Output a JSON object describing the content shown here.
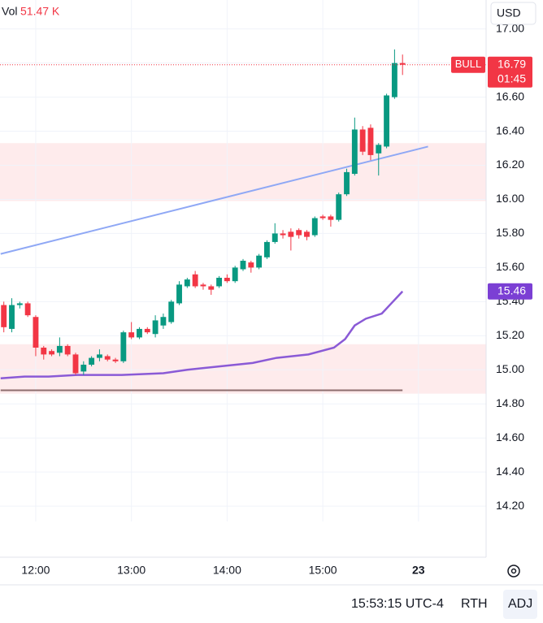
{
  "header": {
    "vol_label": "Vol",
    "vol_value": "51.47 K",
    "currency": "USD"
  },
  "footer": {
    "clock": "15:53:15 UTC-4",
    "session": "RTH",
    "adjust": "ADJ"
  },
  "badges": {
    "signal": "BULL",
    "last_price": "16.79",
    "countdown": "01:45",
    "vwap": "15.46"
  },
  "chart_data": {
    "type": "candlestick",
    "xlim": [
      697.6,
      1002.4
    ],
    "ylim": [
      14.11,
      17.17
    ],
    "xticks": [
      {
        "value": 720,
        "label": "12:00"
      },
      {
        "value": 780,
        "label": "13:00"
      },
      {
        "value": 840,
        "label": "14:00"
      },
      {
        "value": 900,
        "label": "15:00"
      },
      {
        "value": 960,
        "label": "23"
      }
    ],
    "yticks": [
      {
        "value": 14.2,
        "label": "14.20"
      },
      {
        "value": 14.4,
        "label": "14.40"
      },
      {
        "value": 14.6,
        "label": "14.60"
      },
      {
        "value": 14.8,
        "label": "14.80"
      },
      {
        "value": 15.0,
        "label": "15.00"
      },
      {
        "value": 15.2,
        "label": "15.20"
      },
      {
        "value": 15.4,
        "label": "15.40"
      },
      {
        "value": 15.6,
        "label": "15.60"
      },
      {
        "value": 15.8,
        "label": "15.80"
      },
      {
        "value": 16.0,
        "label": "16.00"
      },
      {
        "value": 16.2,
        "label": "16.20"
      },
      {
        "value": 16.4,
        "label": "16.40"
      },
      {
        "value": 16.6,
        "label": "16.60"
      },
      {
        "value": 16.8,
        "label": "16.80"
      },
      {
        "value": 17.0,
        "label": "17.00"
      }
    ],
    "grid": true,
    "up_color": "#089981",
    "down_color": "#f23645",
    "x": [
      700,
      705,
      710,
      715,
      720,
      725,
      730,
      735,
      740,
      745,
      750,
      755,
      760,
      765,
      770,
      775,
      780,
      785,
      790,
      795,
      800,
      805,
      810,
      815,
      820,
      825,
      830,
      835,
      840,
      845,
      850,
      855,
      860,
      865,
      870,
      875,
      880,
      885,
      890,
      895,
      900,
      905,
      910,
      915,
      920,
      925,
      930,
      935,
      940,
      945,
      950
    ],
    "open": [
      15.38,
      15.24,
      15.38,
      15.39,
      15.31,
      15.13,
      15.11,
      15.1,
      15.14,
      15.09,
      14.99,
      15.03,
      15.07,
      15.08,
      15.06,
      15.05,
      15.22,
      15.19,
      15.24,
      15.21,
      15.26,
      15.28,
      15.39,
      15.49,
      15.56,
      15.5,
      15.49,
      15.49,
      15.54,
      15.52,
      15.59,
      15.63,
      15.6,
      15.66,
      15.75,
      15.8,
      15.81,
      15.82,
      15.81,
      15.79,
      15.9,
      15.9,
      15.88,
      16.03,
      16.15,
      16.41,
      16.42,
      16.27,
      16.31,
      16.6,
      16.8
    ],
    "high": [
      15.4,
      15.42,
      15.4,
      15.4,
      15.32,
      15.14,
      15.12,
      15.19,
      15.15,
      15.1,
      15.05,
      15.08,
      15.12,
      15.09,
      15.07,
      15.23,
      15.28,
      15.25,
      15.25,
      15.32,
      15.33,
      15.41,
      15.52,
      15.54,
      15.58,
      15.51,
      15.5,
      15.55,
      15.56,
      15.61,
      15.65,
      15.64,
      15.68,
      15.76,
      15.86,
      15.82,
      15.83,
      15.83,
      15.82,
      15.9,
      15.91,
      15.91,
      16.04,
      16.18,
      16.48,
      16.43,
      16.44,
      16.33,
      16.62,
      16.88,
      16.85
    ],
    "low": [
      15.22,
      15.22,
      15.36,
      15.31,
      15.08,
      15.06,
      15.08,
      15.08,
      15.08,
      14.97,
      14.97,
      15.02,
      15.05,
      15.05,
      15.04,
      15.04,
      15.18,
      15.18,
      15.21,
      15.19,
      15.24,
      15.27,
      15.38,
      15.48,
      15.48,
      15.47,
      15.44,
      15.48,
      15.51,
      15.51,
      15.58,
      15.57,
      15.59,
      15.65,
      15.74,
      15.77,
      15.7,
      15.77,
      15.76,
      15.78,
      15.88,
      15.84,
      15.87,
      16.02,
      16.14,
      16.26,
      16.23,
      16.14,
      16.3,
      16.59,
      16.73
    ],
    "close": [
      15.25,
      15.38,
      15.39,
      15.32,
      15.13,
      15.09,
      15.09,
      15.14,
      15.09,
      14.98,
      15.03,
      15.07,
      15.09,
      15.06,
      15.05,
      15.22,
      15.19,
      15.24,
      15.22,
      15.29,
      15.31,
      15.4,
      15.5,
      15.53,
      15.49,
      15.49,
      15.47,
      15.54,
      15.52,
      15.6,
      15.64,
      15.6,
      15.67,
      15.75,
      15.8,
      15.79,
      15.78,
      15.79,
      15.78,
      15.89,
      15.89,
      15.88,
      16.03,
      16.16,
      16.41,
      16.28,
      16.26,
      16.32,
      16.61,
      16.8,
      16.79
    ],
    "lines": [
      {
        "color": "#8fa8f5",
        "x": [
          698,
          966
        ],
        "values": [
          15.68,
          16.31
        ]
      },
      {
        "color": "#8a5ad6",
        "x": [
          698,
          713,
          728,
          746,
          774,
          800,
          815,
          835,
          856,
          871,
          891,
          907,
          914,
          920,
          927,
          937,
          943,
          950
        ],
        "values": [
          14.95,
          14.96,
          14.96,
          14.97,
          14.97,
          14.98,
          15.0,
          15.02,
          15.04,
          15.07,
          15.09,
          15.13,
          15.18,
          15.26,
          15.3,
          15.33,
          15.39,
          15.46
        ]
      },
      {
        "color": "#8d6e6e",
        "x": [
          698,
          950
        ],
        "values": [
          14.88,
          14.88
        ]
      }
    ],
    "zones": [
      {
        "low": 15.99,
        "high": 16.33
      },
      {
        "low": 14.86,
        "high": 15.15
      }
    ]
  }
}
